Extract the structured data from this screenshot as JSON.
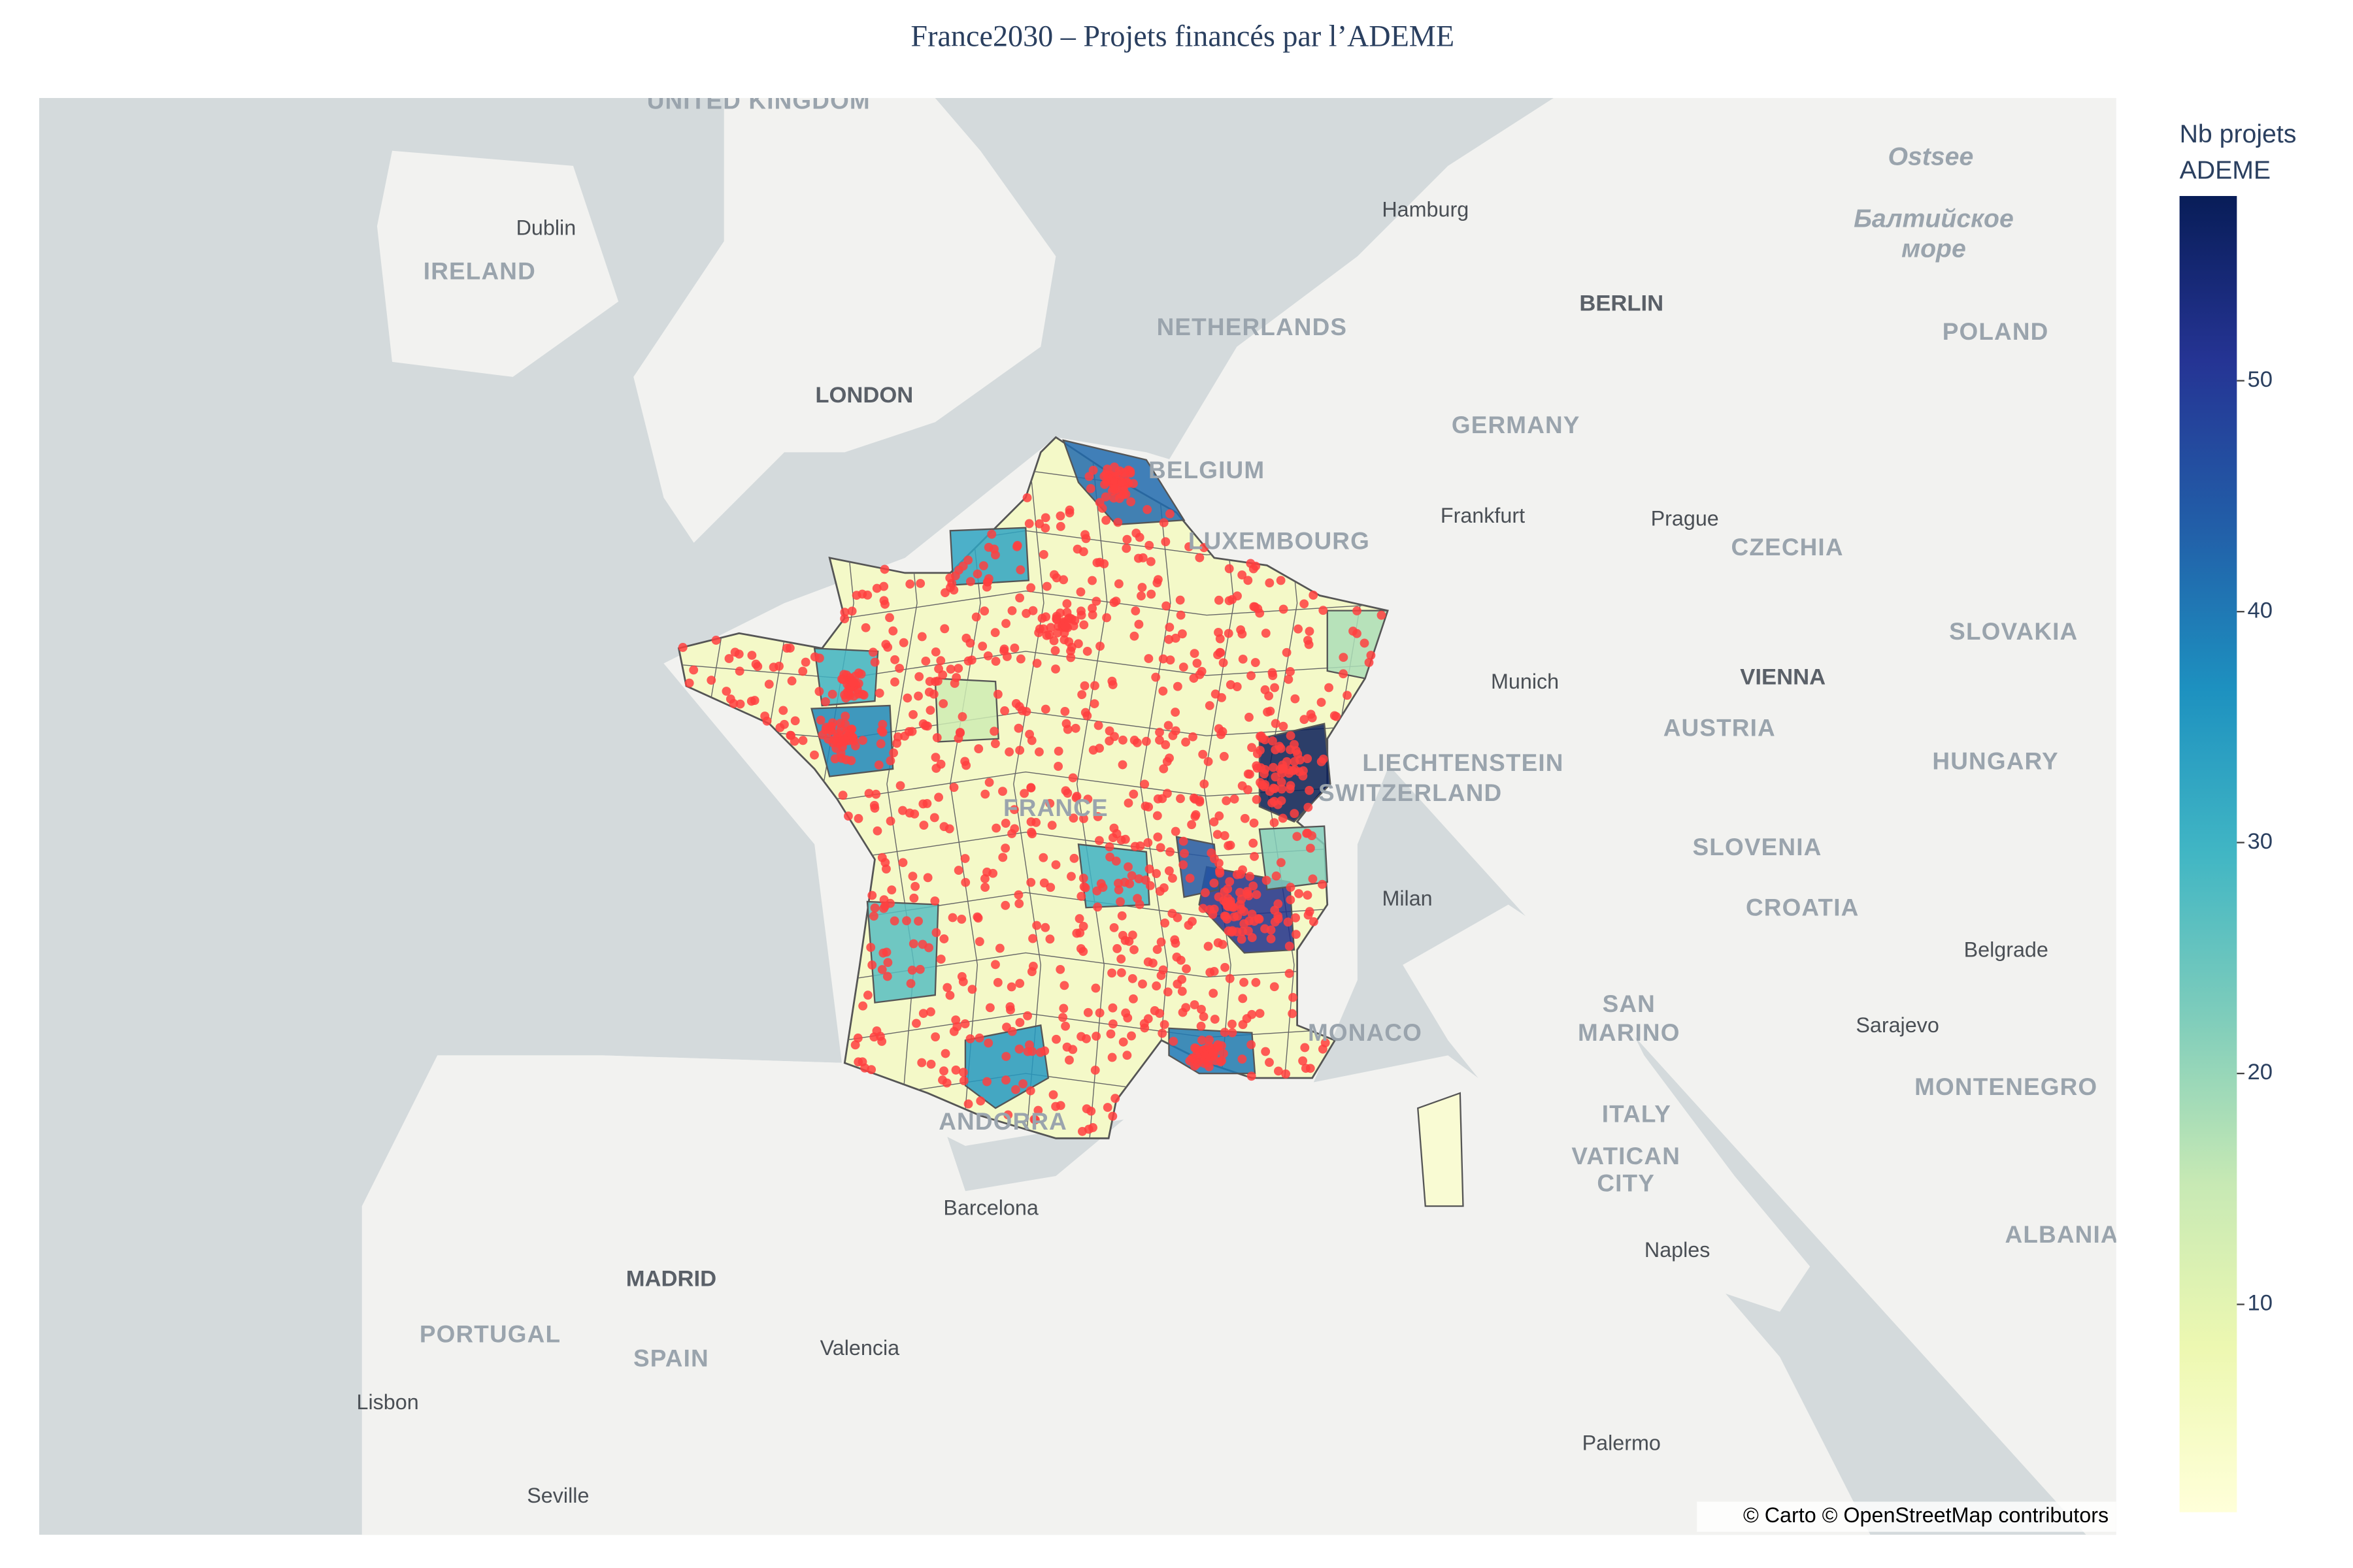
{
  "chart_data": {
    "type": "choropleth",
    "title": "France2030 – Projets financés par l’ADEME",
    "colorbar": {
      "title": [
        "Nb projets",
        "ADEME"
      ],
      "zlim": [
        1,
        58
      ],
      "ticks": [
        10,
        20,
        30,
        40,
        50
      ],
      "colorscale": [
        "#ffffd9",
        "#edf8b1",
        "#c7e9b4",
        "#7fcdbb",
        "#41b6c4",
        "#1d91c0",
        "#225ea8",
        "#253494",
        "#081d58"
      ]
    },
    "regions": {
      "values": [
        42,
        58,
        52,
        38,
        40,
        35,
        27,
        30,
        33,
        30,
        22,
        18,
        14,
        45,
        3
      ]
    },
    "marker_color": "#ff4040",
    "map_labels": [
      "UNITED KINGDOM",
      "Dublin",
      "IRELAND",
      "LONDON",
      "NETHERLANDS",
      "Hamburg",
      "BERLIN",
      "Ostsee",
      "Балтийское",
      "море",
      "POLAND",
      "BELGIUM",
      "LUXEMBOURG",
      "Frankfurt",
      "Prague",
      "CZECHIA",
      "GERMANY",
      "SLOVAKIA",
      "VIENNA",
      "Munich",
      "AUSTRIA",
      "LIECHTENSTEIN",
      "SWITZERLAND",
      "HUNGARY",
      "SLOVENIA",
      "CROATIA",
      "Milan",
      "Belgrade",
      "FRANCE",
      "MONACO",
      "SAN",
      "MARINO",
      "Sarajevo",
      "MONTENEGRO",
      "ITALY",
      "VATICAN",
      "CITY",
      "ANDORRA",
      "Barcelona",
      "MADRID",
      "PORTUGAL",
      "SPAIN",
      "Valencia",
      "Lisbon",
      "Naples",
      "ALBANIA",
      "Palermo",
      "Seville"
    ],
    "attribution": "© Carto © OpenStreetMap contributors"
  }
}
